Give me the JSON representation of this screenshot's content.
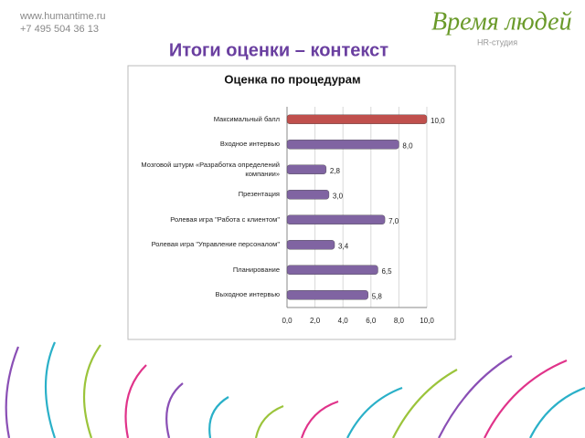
{
  "header": {
    "site": "www.humantime.ru",
    "phone": "+7 495 504 36 13",
    "logo": "Время людей",
    "logo_subtitle": "HR-студия",
    "title": "Итоги оценки – контекст"
  },
  "chart_data": {
    "type": "bar",
    "orientation": "horizontal",
    "title": "Оценка по процедурам",
    "categories": [
      "Максимальный балл",
      "Входное интервью",
      "Мозговой штурм «Разработка определений компании»",
      "Презентация",
      "Ролевая игра \"Работа с клиентом\"",
      "Ролевая игра \"Управление персоналом\"",
      "Планирование",
      "Выходное интервью"
    ],
    "values": [
      10.0,
      8.0,
      2.8,
      3.0,
      7.0,
      3.4,
      6.5,
      5.8
    ],
    "value_labels": [
      "10,0",
      "8,0",
      "2,8",
      "3,0",
      "7,0",
      "3,4",
      "6,5",
      "5,8"
    ],
    "colors": [
      "#c0504d",
      "#8064a2",
      "#8064a2",
      "#8064a2",
      "#8064a2",
      "#8064a2",
      "#8064a2",
      "#8064a2"
    ],
    "xlim": [
      0,
      10
    ],
    "xticks": [
      {
        "value": 0,
        "label": "0,0"
      },
      {
        "value": 2,
        "label": "2,0"
      },
      {
        "value": 4,
        "label": "4,0"
      },
      {
        "value": 6,
        "label": "6,0"
      },
      {
        "value": 8,
        "label": "8,0"
      },
      {
        "value": 10,
        "label": "10,0"
      }
    ],
    "grid": true
  }
}
